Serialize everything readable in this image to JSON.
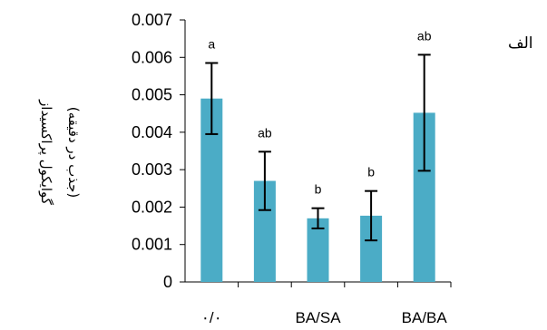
{
  "panel_label": "الف",
  "chart_data": {
    "type": "bar",
    "categories": [
      "۰/۰",
      "",
      "BA/SA",
      "",
      "BA/BA"
    ],
    "values": [
      0.0049,
      0.0027,
      0.0017,
      0.00177,
      0.00452
    ],
    "errors": [
      0.00095,
      0.00078,
      0.00027,
      0.00066,
      0.00155
    ],
    "significance": [
      "a",
      "ab",
      "b",
      "b",
      "ab"
    ],
    "ylabel": "گوایکول پراکسیداز",
    "ylabel_sub": "(جذب در دقیقه)",
    "xlabel": "",
    "ylim": [
      0,
      0.007
    ],
    "yticks": [
      "0",
      "0.001",
      "0.002",
      "0.003",
      "0.004",
      "0.005",
      "0.006",
      "0.007"
    ],
    "bar_color": "#4bacc6",
    "grid": false,
    "legend": "none"
  }
}
